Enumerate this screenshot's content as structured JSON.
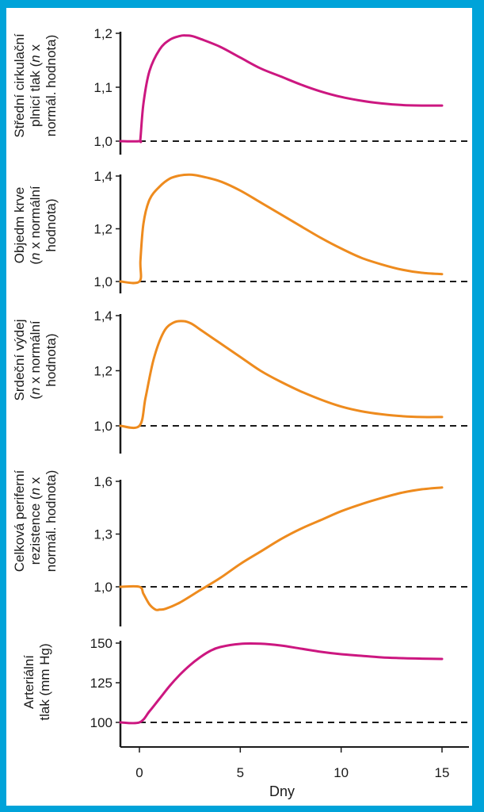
{
  "colors": {
    "frame": "#00a3d9",
    "panel": "#ffffff",
    "axis": "#1a1a1a",
    "magenta": "#cc1780",
    "orange": "#ee8b1e",
    "baseline": "#1a1a1a"
  },
  "xaxis": {
    "label": "Dny",
    "ticks": [
      0,
      5,
      10,
      15
    ],
    "tick_labels": [
      "0",
      "5",
      "10",
      "15"
    ],
    "range": [
      -1,
      16.2
    ]
  },
  "chart_data": [
    {
      "type": "line",
      "ylabel_lines": [
        "Střední cirkulační",
        "plnicí tlak (n x",
        "normál. hodnota)"
      ],
      "ylabel_italic_n_line": 1,
      "yticks": [
        1.0,
        1.1,
        1.2
      ],
      "ytick_labels": [
        "1,0",
        "1,1",
        "1,2"
      ],
      "ylim": [
        0.97,
        1.205
      ],
      "baseline": 1.0,
      "color": "magenta",
      "x": [
        -1,
        0,
        0.05,
        0.2,
        0.5,
        1,
        1.5,
        2,
        2.3,
        2.6,
        3,
        4,
        5,
        6,
        7,
        8,
        9,
        10,
        11,
        12,
        13,
        14,
        15
      ],
      "y": [
        1.0,
        1.0,
        1.005,
        1.07,
        1.13,
        1.17,
        1.188,
        1.195,
        1.196,
        1.195,
        1.19,
        1.175,
        1.155,
        1.135,
        1.12,
        1.105,
        1.092,
        1.082,
        1.075,
        1.07,
        1.067,
        1.066,
        1.066
      ]
    },
    {
      "type": "line",
      "ylabel_lines": [
        "Objedm krve",
        "(n x normální",
        "hodnota)"
      ],
      "ylabel_italic_n_line": 1,
      "yticks": [
        1.0,
        1.2,
        1.4
      ],
      "ytick_labels": [
        "1,0",
        "1,2",
        "1,4"
      ],
      "ylim": [
        0.97,
        1.42
      ],
      "baseline": 1.0,
      "color": "orange",
      "x": [
        -1,
        0,
        0.05,
        0.2,
        0.5,
        1,
        1.5,
        2,
        2.5,
        3,
        4,
        5,
        6,
        7,
        8,
        9,
        10,
        11,
        12,
        13,
        14,
        15
      ],
      "y": [
        1.0,
        1.0,
        1.08,
        1.22,
        1.31,
        1.36,
        1.39,
        1.402,
        1.405,
        1.4,
        1.38,
        1.345,
        1.3,
        1.255,
        1.21,
        1.165,
        1.125,
        1.09,
        1.065,
        1.045,
        1.033,
        1.028
      ]
    },
    {
      "type": "line",
      "ylabel_lines": [
        "Srdeční výdej",
        "(n x normální",
        "hodnota)"
      ],
      "ylabel_italic_n_line": 1,
      "yticks": [
        1.0,
        1.2,
        1.4
      ],
      "ytick_labels": [
        "1,0",
        "1,2",
        "1,4"
      ],
      "ylim": [
        0.97,
        1.42
      ],
      "baseline": 1.0,
      "color": "orange",
      "x": [
        -1,
        0,
        0.3,
        0.7,
        1.2,
        1.7,
        2.2,
        2.6,
        3,
        4,
        5,
        6,
        7,
        8,
        9,
        10,
        11,
        12,
        13,
        14,
        15
      ],
      "y": [
        1.0,
        1.0,
        1.1,
        1.24,
        1.34,
        1.375,
        1.38,
        1.37,
        1.35,
        1.3,
        1.25,
        1.2,
        1.16,
        1.125,
        1.095,
        1.07,
        1.053,
        1.042,
        1.035,
        1.032,
        1.032
      ]
    },
    {
      "type": "line",
      "ylabel_lines": [
        "Celková periferní",
        "rezistence (n x",
        "normál. hodnota)"
      ],
      "ylabel_italic_n_line": 1,
      "yticks": [
        1.0,
        1.3,
        1.6
      ],
      "ytick_labels": [
        "1,0",
        "1,3",
        "1,6"
      ],
      "ylim": [
        0.84,
        1.62
      ],
      "baseline": 1.0,
      "color": "orange",
      "x": [
        -1,
        0,
        0.2,
        0.5,
        0.8,
        1,
        1.3,
        2,
        3,
        4,
        5,
        6,
        7,
        8,
        9,
        10,
        11,
        12,
        13,
        14,
        15
      ],
      "y": [
        1.0,
        1.0,
        0.96,
        0.9,
        0.87,
        0.87,
        0.875,
        0.91,
        0.98,
        1.05,
        1.13,
        1.2,
        1.27,
        1.33,
        1.38,
        1.43,
        1.47,
        1.505,
        1.535,
        1.555,
        1.565
      ]
    },
    {
      "type": "line",
      "ylabel_lines": [
        "Arteriální",
        "tlak (mm Hg)"
      ],
      "ylabel_italic_n_line": -1,
      "yticks": [
        100,
        125,
        150
      ],
      "ytick_labels": [
        "100",
        "125",
        "150"
      ],
      "ylim": [
        87,
        153
      ],
      "baseline": 100,
      "color": "magenta",
      "x": [
        -1,
        0,
        0.5,
        1,
        1.5,
        2,
        2.5,
        3,
        3.5,
        4,
        5,
        6,
        7,
        8,
        9,
        10,
        11,
        12,
        13,
        14,
        15
      ],
      "y": [
        100,
        100,
        107,
        115,
        123,
        130,
        136,
        141,
        145,
        147.5,
        149.5,
        149.6,
        148.5,
        146.5,
        144.5,
        143,
        142,
        141,
        140.5,
        140.2,
        140
      ]
    }
  ]
}
